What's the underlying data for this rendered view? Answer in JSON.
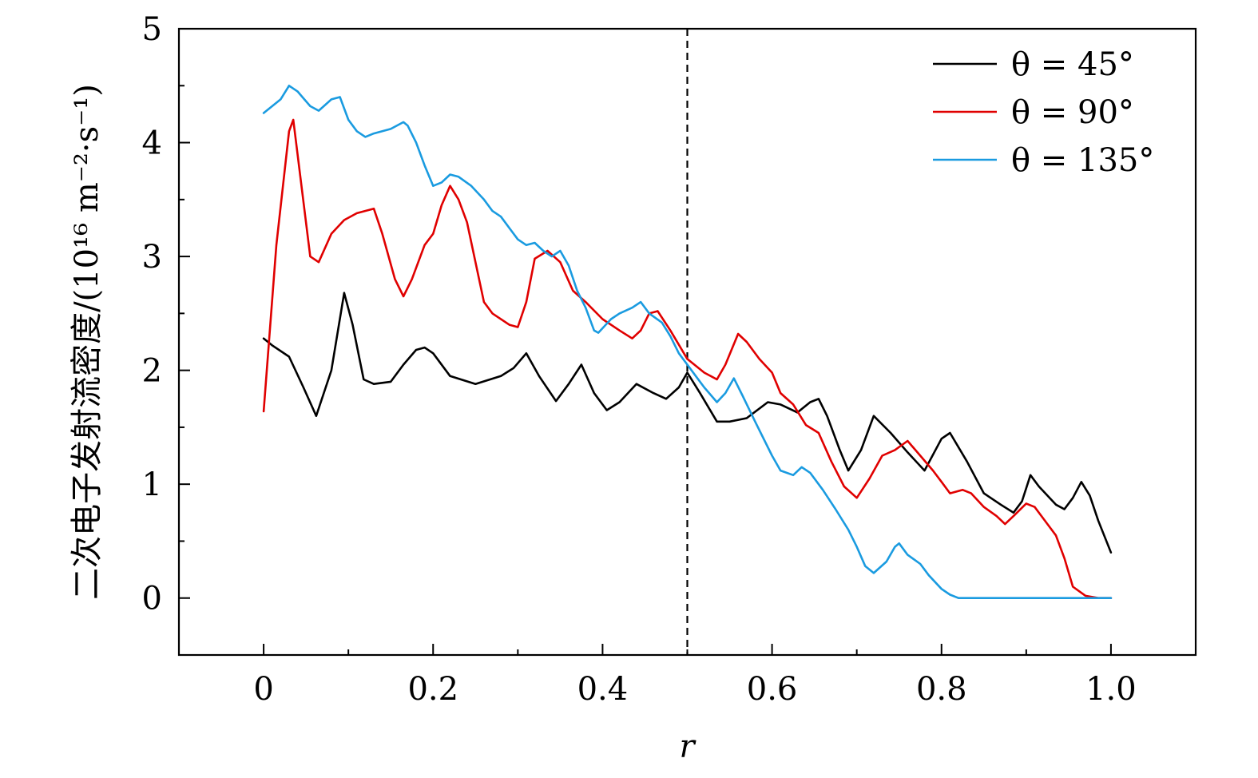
{
  "chart_data": {
    "type": "line",
    "title": "",
    "xlabel": "r",
    "ylabel": "二次电子发射流密度/(10¹⁶ m⁻²·s⁻¹)",
    "xlim": [
      -0.1,
      1.1
    ],
    "ylim": [
      -0.5,
      5
    ],
    "xticks": [
      0,
      0.2,
      0.4,
      0.6,
      0.8,
      1.0
    ],
    "xtick_labels": [
      "0",
      "0.2",
      "0.4",
      "0.6",
      "0.8",
      "1.0"
    ],
    "yticks": [
      0,
      1,
      2,
      3,
      4,
      5
    ],
    "ytick_labels": [
      "0",
      "1",
      "2",
      "3",
      "4",
      "5"
    ],
    "grid": false,
    "legend_position": "top-right",
    "reference_line": {
      "x": 0.5,
      "style": "dashed"
    },
    "series": [
      {
        "name": "θ = 45°",
        "color": "#000000",
        "x": [
          0,
          0.01,
          0.03,
          0.047,
          0.062,
          0.08,
          0.095,
          0.105,
          0.118,
          0.13,
          0.15,
          0.165,
          0.18,
          0.19,
          0.2,
          0.22,
          0.25,
          0.28,
          0.295,
          0.31,
          0.325,
          0.345,
          0.36,
          0.375,
          0.39,
          0.405,
          0.42,
          0.44,
          0.46,
          0.475,
          0.49,
          0.5,
          0.515,
          0.535,
          0.55,
          0.57,
          0.595,
          0.61,
          0.63,
          0.645,
          0.655,
          0.665,
          0.68,
          0.69,
          0.705,
          0.72,
          0.74,
          0.76,
          0.78,
          0.8,
          0.81,
          0.83,
          0.85,
          0.87,
          0.885,
          0.895,
          0.905,
          0.915,
          0.935,
          0.945,
          0.955,
          0.965,
          0.975,
          0.985,
          1.0
        ],
        "y": [
          2.28,
          2.22,
          2.12,
          1.85,
          1.6,
          2.0,
          2.68,
          2.4,
          1.92,
          1.88,
          1.9,
          2.05,
          2.18,
          2.2,
          2.15,
          1.95,
          1.88,
          1.95,
          2.02,
          2.15,
          1.95,
          1.73,
          1.88,
          2.05,
          1.8,
          1.65,
          1.72,
          1.88,
          1.8,
          1.75,
          1.85,
          1.98,
          1.8,
          1.55,
          1.55,
          1.58,
          1.72,
          1.7,
          1.63,
          1.72,
          1.75,
          1.6,
          1.3,
          1.12,
          1.3,
          1.6,
          1.45,
          1.28,
          1.12,
          1.4,
          1.45,
          1.2,
          0.92,
          0.82,
          0.75,
          0.85,
          1.08,
          0.98,
          0.82,
          0.78,
          0.88,
          1.02,
          0.9,
          0.68,
          0.4
        ]
      },
      {
        "name": "θ = 90°",
        "color": "#e00000",
        "x": [
          0,
          0.015,
          0.03,
          0.035,
          0.045,
          0.055,
          0.065,
          0.08,
          0.095,
          0.11,
          0.13,
          0.14,
          0.155,
          0.165,
          0.175,
          0.19,
          0.2,
          0.21,
          0.22,
          0.23,
          0.24,
          0.26,
          0.27,
          0.29,
          0.3,
          0.31,
          0.32,
          0.335,
          0.35,
          0.365,
          0.38,
          0.4,
          0.42,
          0.435,
          0.445,
          0.455,
          0.465,
          0.48,
          0.5,
          0.52,
          0.535,
          0.545,
          0.56,
          0.57,
          0.585,
          0.6,
          0.61,
          0.625,
          0.64,
          0.655,
          0.67,
          0.685,
          0.7,
          0.715,
          0.73,
          0.745,
          0.76,
          0.775,
          0.79,
          0.8,
          0.81,
          0.825,
          0.835,
          0.85,
          0.865,
          0.875,
          0.885,
          0.9,
          0.91,
          0.925,
          0.935,
          0.945,
          0.955,
          0.97,
          0.985,
          1.0
        ],
        "y": [
          1.64,
          3.1,
          4.1,
          4.2,
          3.6,
          3.0,
          2.95,
          3.2,
          3.32,
          3.38,
          3.42,
          3.2,
          2.8,
          2.65,
          2.8,
          3.1,
          3.2,
          3.45,
          3.62,
          3.5,
          3.3,
          2.6,
          2.5,
          2.4,
          2.38,
          2.6,
          2.98,
          3.05,
          2.95,
          2.7,
          2.6,
          2.45,
          2.35,
          2.28,
          2.35,
          2.5,
          2.52,
          2.35,
          2.1,
          1.98,
          1.92,
          2.05,
          2.32,
          2.25,
          2.1,
          1.98,
          1.8,
          1.7,
          1.52,
          1.45,
          1.2,
          0.98,
          0.88,
          1.05,
          1.25,
          1.3,
          1.38,
          1.25,
          1.12,
          1.02,
          0.92,
          0.95,
          0.92,
          0.8,
          0.72,
          0.65,
          0.72,
          0.83,
          0.8,
          0.65,
          0.55,
          0.35,
          0.1,
          0.02,
          0.0,
          0.0
        ]
      },
      {
        "name": "θ = 135°",
        "color": "#1a9be0",
        "x": [
          0,
          0.02,
          0.03,
          0.04,
          0.055,
          0.065,
          0.08,
          0.09,
          0.1,
          0.11,
          0.12,
          0.13,
          0.14,
          0.15,
          0.165,
          0.17,
          0.18,
          0.19,
          0.2,
          0.21,
          0.22,
          0.23,
          0.245,
          0.26,
          0.27,
          0.28,
          0.29,
          0.3,
          0.31,
          0.32,
          0.33,
          0.34,
          0.35,
          0.36,
          0.37,
          0.38,
          0.39,
          0.395,
          0.41,
          0.42,
          0.435,
          0.445,
          0.455,
          0.47,
          0.48,
          0.49,
          0.5,
          0.51,
          0.52,
          0.535,
          0.545,
          0.555,
          0.565,
          0.58,
          0.6,
          0.61,
          0.625,
          0.635,
          0.645,
          0.66,
          0.675,
          0.69,
          0.7,
          0.71,
          0.72,
          0.735,
          0.745,
          0.75,
          0.76,
          0.775,
          0.785,
          0.8,
          0.81,
          0.82,
          0.84,
          0.9,
          1.0
        ],
        "y": [
          4.26,
          4.38,
          4.5,
          4.45,
          4.32,
          4.28,
          4.38,
          4.4,
          4.2,
          4.1,
          4.05,
          4.08,
          4.1,
          4.12,
          4.18,
          4.15,
          4.0,
          3.8,
          3.62,
          3.65,
          3.72,
          3.7,
          3.62,
          3.5,
          3.4,
          3.35,
          3.25,
          3.15,
          3.1,
          3.12,
          3.05,
          3.0,
          3.05,
          2.92,
          2.7,
          2.55,
          2.35,
          2.33,
          2.45,
          2.5,
          2.55,
          2.6,
          2.5,
          2.42,
          2.3,
          2.15,
          2.05,
          1.95,
          1.85,
          1.72,
          1.8,
          1.93,
          1.78,
          1.55,
          1.25,
          1.12,
          1.08,
          1.15,
          1.1,
          0.95,
          0.78,
          0.6,
          0.45,
          0.28,
          0.22,
          0.32,
          0.45,
          0.48,
          0.38,
          0.3,
          0.2,
          0.08,
          0.03,
          0.0,
          0.0,
          0.0,
          0.0
        ]
      }
    ]
  }
}
